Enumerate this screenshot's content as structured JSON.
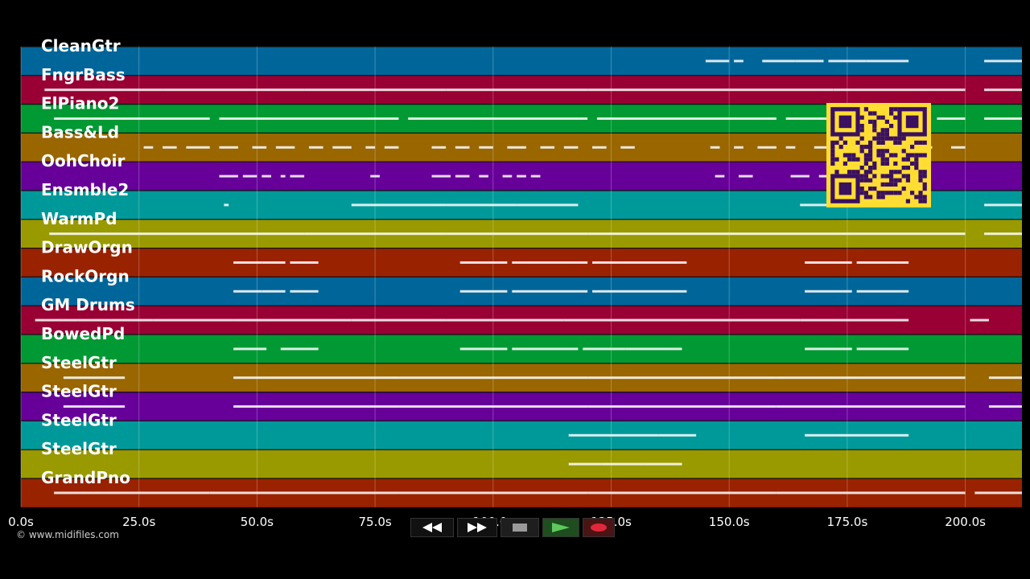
{
  "time_axis": {
    "min": 0,
    "max": 212,
    "ticks": [
      {
        "value": 0,
        "label": "0.0s"
      },
      {
        "value": 25,
        "label": "25.0s"
      },
      {
        "value": 50,
        "label": "50.0s"
      },
      {
        "value": 75,
        "label": "75.0s"
      },
      {
        "value": 100,
        "label": "100.0s"
      },
      {
        "value": 125,
        "label": "125.0s"
      },
      {
        "value": 150,
        "label": "150.0s"
      },
      {
        "value": 175,
        "label": "175.0s"
      },
      {
        "value": 200,
        "label": "200.0s"
      }
    ]
  },
  "tracks": [
    {
      "name": "CleanGtr",
      "color": "#006699",
      "notes": [
        [
          145,
          150
        ],
        [
          151,
          153
        ],
        [
          157,
          164
        ],
        [
          164,
          170
        ],
        [
          171,
          179
        ],
        [
          179,
          188
        ],
        [
          204,
          212
        ]
      ]
    },
    {
      "name": "FngrBass",
      "color": "#990033",
      "notes": [
        [
          5,
          30
        ],
        [
          30,
          60
        ],
        [
          60,
          90
        ],
        [
          90,
          120
        ],
        [
          120,
          150
        ],
        [
          150,
          172
        ],
        [
          172,
          200
        ],
        [
          204,
          212
        ]
      ]
    },
    {
      "name": "ElPiano2",
      "color": "#009933",
      "notes": [
        [
          7,
          40
        ],
        [
          42,
          80
        ],
        [
          82,
          120
        ],
        [
          122,
          160
        ],
        [
          162,
          180
        ],
        [
          194,
          200
        ],
        [
          204,
          212
        ]
      ]
    },
    {
      "name": "Bass&Ld",
      "color": "#996600",
      "notes": [
        [
          26,
          28
        ],
        [
          30,
          33
        ],
        [
          35,
          40
        ],
        [
          42,
          46
        ],
        [
          49,
          52
        ],
        [
          54,
          58
        ],
        [
          61,
          64
        ],
        [
          66,
          70
        ],
        [
          73,
          75
        ],
        [
          77,
          80
        ],
        [
          87,
          90
        ],
        [
          92,
          95
        ],
        [
          97,
          100
        ],
        [
          103,
          107
        ],
        [
          110,
          113
        ],
        [
          115,
          118
        ],
        [
          121,
          124
        ],
        [
          127,
          130
        ],
        [
          146,
          148
        ],
        [
          151,
          153
        ],
        [
          156,
          160
        ],
        [
          162,
          164
        ],
        [
          168,
          172
        ],
        [
          175,
          178
        ],
        [
          184,
          187
        ],
        [
          191,
          193
        ],
        [
          197,
          200
        ]
      ]
    },
    {
      "name": "OohChoir",
      "color": "#660099",
      "notes": [
        [
          42,
          46
        ],
        [
          47,
          50
        ],
        [
          51,
          53
        ],
        [
          55,
          56
        ],
        [
          57,
          60
        ],
        [
          74,
          76
        ],
        [
          87,
          91
        ],
        [
          92,
          95
        ],
        [
          97,
          99
        ],
        [
          102,
          104
        ],
        [
          105,
          107
        ],
        [
          108,
          110
        ],
        [
          147,
          149
        ],
        [
          152,
          155
        ],
        [
          163,
          167
        ],
        [
          169,
          172
        ],
        [
          174,
          177
        ],
        [
          181,
          184
        ],
        [
          186,
          189
        ]
      ]
    },
    {
      "name": "Ensmble2",
      "color": "#009999",
      "notes": [
        [
          43,
          44
        ],
        [
          70,
          90
        ],
        [
          90,
          105
        ],
        [
          105,
          118
        ],
        [
          165,
          175
        ],
        [
          176,
          190
        ],
        [
          204,
          212
        ]
      ]
    },
    {
      "name": "WarmPd",
      "color": "#999900",
      "notes": [
        [
          6,
          30
        ],
        [
          30,
          60
        ],
        [
          60,
          90
        ],
        [
          90,
          120
        ],
        [
          120,
          150
        ],
        [
          150,
          175
        ],
        [
          175,
          200
        ],
        [
          204,
          212
        ]
      ]
    },
    {
      "name": "DrawOrgn",
      "color": "#992200",
      "notes": [
        [
          45,
          51
        ],
        [
          51,
          56
        ],
        [
          57,
          63
        ],
        [
          93,
          103
        ],
        [
          104,
          120
        ],
        [
          121,
          141
        ],
        [
          166,
          176
        ],
        [
          177,
          188
        ]
      ]
    },
    {
      "name": "RockOrgn",
      "color": "#006699",
      "notes": [
        [
          45,
          51
        ],
        [
          51,
          56
        ],
        [
          57,
          63
        ],
        [
          93,
          103
        ],
        [
          104,
          120
        ],
        [
          121,
          141
        ],
        [
          166,
          176
        ],
        [
          177,
          188
        ]
      ]
    },
    {
      "name": "GM Drums",
      "color": "#990033",
      "notes": [
        [
          3,
          12
        ],
        [
          12,
          28
        ],
        [
          28,
          45
        ],
        [
          45,
          70
        ],
        [
          70,
          90
        ],
        [
          90,
          115
        ],
        [
          115,
          140
        ],
        [
          140,
          165
        ],
        [
          165,
          188
        ],
        [
          201,
          205
        ]
      ]
    },
    {
      "name": "BowedPd",
      "color": "#009933",
      "notes": [
        [
          45,
          52
        ],
        [
          55,
          63
        ],
        [
          93,
          103
        ],
        [
          104,
          118
        ],
        [
          119,
          128
        ],
        [
          128,
          140
        ],
        [
          166,
          176
        ],
        [
          177,
          188
        ]
      ]
    },
    {
      "name": "SteelGtr",
      "color": "#996600",
      "notes": [
        [
          9,
          22
        ],
        [
          45,
          80
        ],
        [
          80,
          120
        ],
        [
          120,
          160
        ],
        [
          160,
          200
        ],
        [
          205,
          212
        ]
      ]
    },
    {
      "name": "SteelGtr",
      "color": "#660099",
      "notes": [
        [
          9,
          22
        ],
        [
          45,
          80
        ],
        [
          80,
          120
        ],
        [
          120,
          160
        ],
        [
          160,
          200
        ],
        [
          205,
          212
        ]
      ]
    },
    {
      "name": "SteelGtr",
      "color": "#009999",
      "notes": [
        [
          116,
          125
        ],
        [
          125,
          135
        ],
        [
          135,
          143
        ],
        [
          166,
          178
        ],
        [
          178,
          188
        ]
      ]
    },
    {
      "name": "SteelGtr",
      "color": "#999900",
      "notes": [
        [
          116,
          123
        ],
        [
          123,
          132
        ],
        [
          132,
          140
        ]
      ]
    },
    {
      "name": "GrandPno",
      "color": "#992200",
      "notes": [
        [
          7,
          40
        ],
        [
          40,
          80
        ],
        [
          80,
          120
        ],
        [
          120,
          160
        ],
        [
          160,
          200
        ],
        [
          202,
          212
        ]
      ]
    }
  ],
  "qr_code": {
    "color": "#ffdd33",
    "dark": "#3a1060"
  },
  "copyright": "© www.midifiles.com",
  "transport": {
    "rewind": "rewind-icon",
    "fast_forward": "fast-forward-icon",
    "stop": "stop-icon",
    "play": "play-icon",
    "record": "record-icon"
  }
}
